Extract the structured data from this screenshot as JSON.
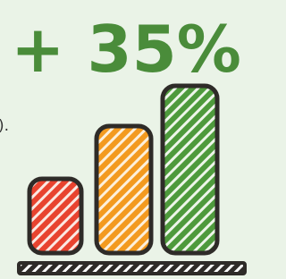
{
  "headline": "+ 35%",
  "fragment": ")."
}
